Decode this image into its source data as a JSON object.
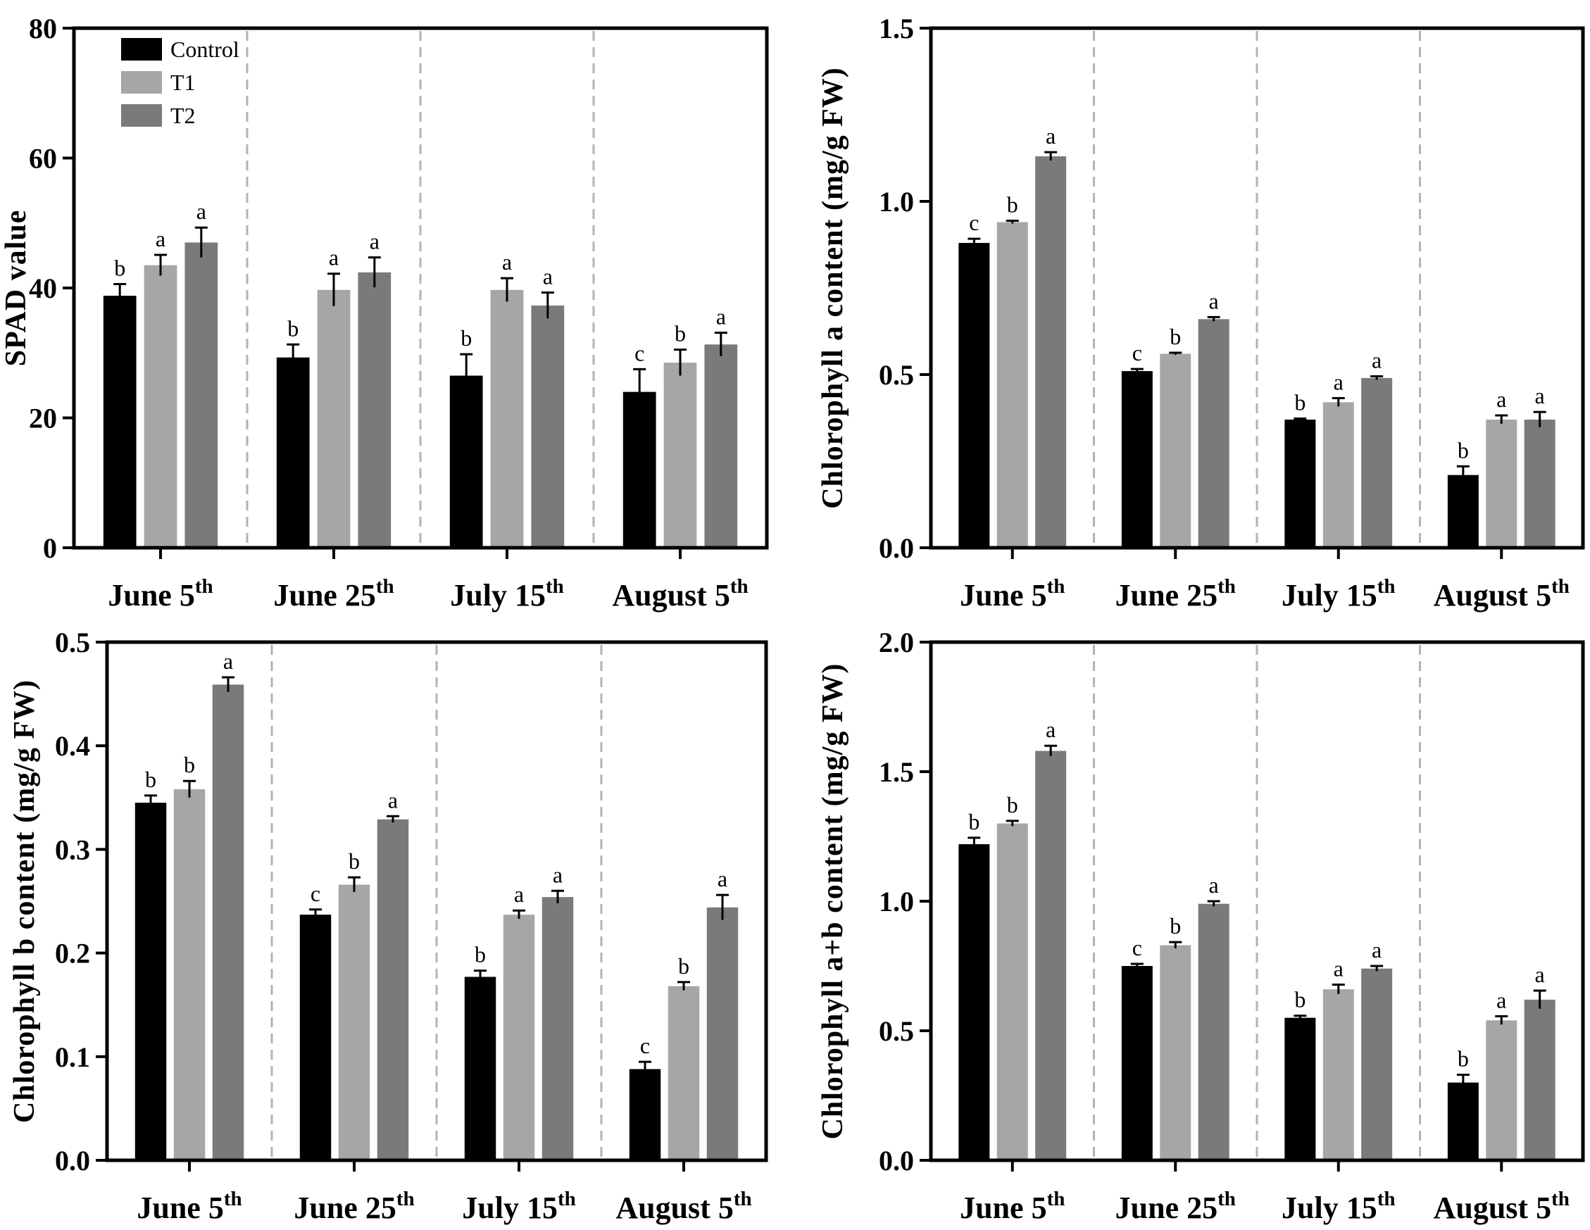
{
  "legend": [
    {
      "name": "Control",
      "color": "#000000"
    },
    {
      "name": "T1",
      "color": "#a6a6a6"
    },
    {
      "name": "T2",
      "color": "#7a7a7a"
    }
  ],
  "chart_data": [
    {
      "type": "bar",
      "ylabel": "SPAD value",
      "ylim": [
        0,
        80
      ],
      "yticks": [
        "0",
        "20",
        "40",
        "60",
        "80"
      ],
      "categories": [
        {
          "base": "June 5",
          "sup": "th"
        },
        {
          "base": "June 25",
          "sup": "th"
        },
        {
          "base": "July 15",
          "sup": "th"
        },
        {
          "base": "August 5",
          "sup": "th"
        }
      ],
      "series": [
        {
          "name": "Control",
          "values": [
            38.8,
            29.3,
            26.5,
            24.0
          ],
          "errors": [
            1.8,
            2.0,
            3.3,
            3.5
          ],
          "letters": [
            "b",
            "b",
            "b",
            "c"
          ]
        },
        {
          "name": "T1",
          "values": [
            43.5,
            39.7,
            39.7,
            28.5
          ],
          "errors": [
            1.6,
            2.5,
            1.8,
            2.0
          ],
          "letters": [
            "a",
            "a",
            "a",
            "b"
          ]
        },
        {
          "name": "T2",
          "values": [
            47.0,
            42.4,
            37.3,
            31.3
          ],
          "errors": [
            2.3,
            2.3,
            2.0,
            1.8
          ],
          "letters": [
            "a",
            "a",
            "a",
            "a"
          ]
        }
      ]
    },
    {
      "type": "bar",
      "ylabel": "Chlorophyll a content (mg/g FW)",
      "ylim": [
        0,
        1.5
      ],
      "yticks": [
        "0.0",
        "0.5",
        "1.0",
        "1.5"
      ],
      "categories": [
        {
          "base": "June 5",
          "sup": "th"
        },
        {
          "base": "June 25",
          "sup": "th"
        },
        {
          "base": "July 15",
          "sup": "th"
        },
        {
          "base": "August 5",
          "sup": "th"
        }
      ],
      "series": [
        {
          "name": "Control",
          "values": [
            0.88,
            0.51,
            0.37,
            0.21
          ],
          "errors": [
            0.012,
            0.006,
            0.003,
            0.025
          ],
          "letters": [
            "c",
            "c",
            "b",
            "b"
          ]
        },
        {
          "name": "T1",
          "values": [
            0.94,
            0.56,
            0.42,
            0.37
          ],
          "errors": [
            0.004,
            0.003,
            0.012,
            0.012
          ],
          "letters": [
            "b",
            "b",
            "a",
            "a"
          ]
        },
        {
          "name": "T2",
          "values": [
            1.13,
            0.66,
            0.49,
            0.37
          ],
          "errors": [
            0.012,
            0.006,
            0.005,
            0.022
          ],
          "letters": [
            "a",
            "a",
            "a",
            "a"
          ]
        }
      ]
    },
    {
      "type": "bar",
      "ylabel": "Chlorophyll b content (mg/g FW)",
      "ylim": [
        0,
        0.5
      ],
      "yticks": [
        "0.0",
        "0.1",
        "0.2",
        "0.3",
        "0.4",
        "0.5"
      ],
      "categories": [
        {
          "base": "June 5",
          "sup": "th"
        },
        {
          "base": "June 25",
          "sup": "th"
        },
        {
          "base": "July 15",
          "sup": "th"
        },
        {
          "base": "August 5",
          "sup": "th"
        }
      ],
      "series": [
        {
          "name": "Control",
          "values": [
            0.345,
            0.237,
            0.177,
            0.088
          ],
          "errors": [
            0.007,
            0.005,
            0.006,
            0.007
          ],
          "letters": [
            "b",
            "c",
            "b",
            "c"
          ]
        },
        {
          "name": "T1",
          "values": [
            0.358,
            0.266,
            0.237,
            0.168
          ],
          "errors": [
            0.008,
            0.007,
            0.004,
            0.004
          ],
          "letters": [
            "b",
            "b",
            "a",
            "b"
          ]
        },
        {
          "name": "T2",
          "values": [
            0.459,
            0.329,
            0.254,
            0.244
          ],
          "errors": [
            0.007,
            0.003,
            0.006,
            0.012
          ],
          "letters": [
            "a",
            "a",
            "a",
            "a"
          ]
        }
      ]
    },
    {
      "type": "bar",
      "ylabel": "Chlorophyll a+b content (mg/g FW)",
      "ylim": [
        0,
        2.0
      ],
      "yticks": [
        "0.0",
        "0.5",
        "1.0",
        "1.5",
        "2.0"
      ],
      "categories": [
        {
          "base": "June 5",
          "sup": "th"
        },
        {
          "base": "June 25",
          "sup": "th"
        },
        {
          "base": "July 15",
          "sup": "th"
        },
        {
          "base": "August 5",
          "sup": "th"
        }
      ],
      "series": [
        {
          "name": "Control",
          "values": [
            1.22,
            0.75,
            0.55,
            0.3
          ],
          "errors": [
            0.025,
            0.008,
            0.008,
            0.03
          ],
          "letters": [
            "b",
            "c",
            "b",
            "b"
          ]
        },
        {
          "name": "T1",
          "values": [
            1.3,
            0.83,
            0.66,
            0.54
          ],
          "errors": [
            0.01,
            0.012,
            0.018,
            0.016
          ],
          "letters": [
            "b",
            "b",
            "a",
            "a"
          ]
        },
        {
          "name": "T2",
          "values": [
            1.58,
            0.99,
            0.74,
            0.62
          ],
          "errors": [
            0.02,
            0.01,
            0.01,
            0.035
          ],
          "letters": [
            "a",
            "a",
            "a",
            "a"
          ]
        }
      ]
    }
  ]
}
